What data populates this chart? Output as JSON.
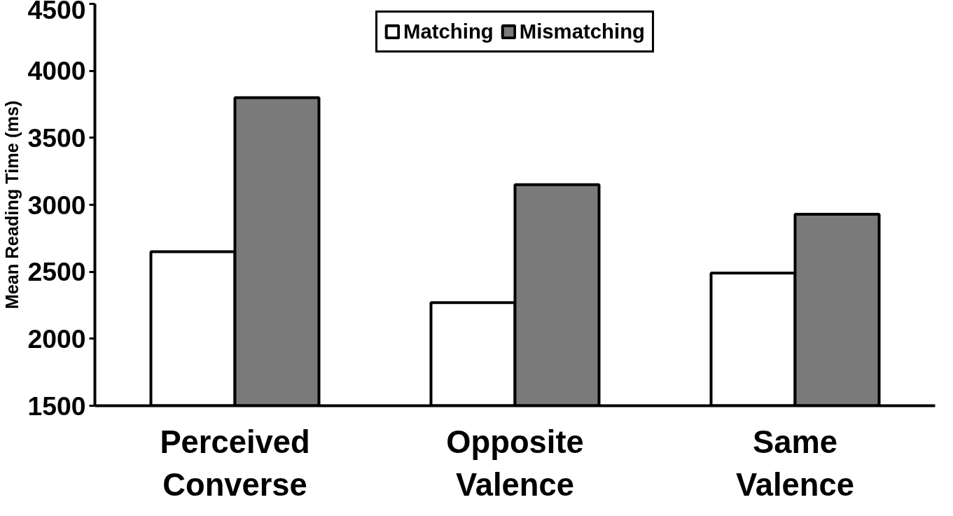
{
  "chart_data": {
    "type": "bar",
    "ylabel": "Mean Reading Time (ms)",
    "categories": [
      "Perceived\nConverse",
      "Opposite\nValence",
      "Same\nValence"
    ],
    "series": [
      {
        "name": "Matching",
        "color": "#ffffff",
        "values": [
          2650,
          2270,
          2490
        ]
      },
      {
        "name": "Mismatching",
        "color": "#7a7a7a",
        "values": [
          3800,
          3150,
          2930
        ]
      }
    ],
    "ylim": [
      1500,
      4500
    ],
    "yticks": [
      1500,
      2000,
      2500,
      3000,
      3500,
      4000,
      4500
    ],
    "grid": false,
    "legend": "top"
  }
}
